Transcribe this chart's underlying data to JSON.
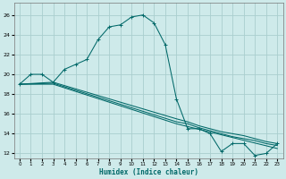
{
  "xlabel": "Humidex (Indice chaleur)",
  "bg_color": "#ceeaea",
  "grid_color": "#aacece",
  "line_color": "#006868",
  "xlim": [
    -0.5,
    23.5
  ],
  "ylim": [
    11.5,
    27.2
  ],
  "xticks": [
    0,
    1,
    2,
    3,
    4,
    5,
    6,
    7,
    8,
    9,
    10,
    11,
    12,
    13,
    14,
    15,
    16,
    17,
    18,
    19,
    20,
    21,
    22,
    23
  ],
  "yticks": [
    12,
    14,
    16,
    18,
    20,
    22,
    24,
    26
  ],
  "curve1_x": [
    0,
    1,
    2,
    3,
    4,
    5,
    6,
    7,
    8,
    9,
    10,
    11,
    12,
    13,
    14,
    15,
    16,
    17,
    18,
    19,
    20,
    21,
    22,
    23
  ],
  "curve1_y": [
    19.0,
    20.0,
    20.0,
    19.2,
    20.5,
    21.0,
    21.5,
    23.5,
    24.8,
    25.0,
    25.8,
    26.0,
    25.2,
    23.0,
    17.5,
    14.5,
    14.5,
    14.0,
    12.2,
    13.0,
    13.0,
    11.8,
    12.0,
    13.0
  ],
  "curve2_x": [
    0,
    3,
    14,
    15,
    16,
    17,
    18,
    19,
    20,
    21,
    22,
    23
  ],
  "curve2_y": [
    19.0,
    19.2,
    15.5,
    15.2,
    14.8,
    14.5,
    14.2,
    14.0,
    13.8,
    13.5,
    13.2,
    13.0
  ],
  "curve3_x": [
    0,
    3,
    14,
    15,
    16,
    17,
    18,
    19,
    20,
    21,
    22,
    23
  ],
  "curve3_y": [
    19.0,
    19.1,
    15.2,
    15.0,
    14.6,
    14.3,
    14.0,
    13.7,
    13.5,
    13.3,
    13.0,
    12.8
  ],
  "curve4_x": [
    0,
    3,
    14,
    23
  ],
  "curve4_y": [
    19.0,
    19.0,
    15.0,
    12.5
  ]
}
